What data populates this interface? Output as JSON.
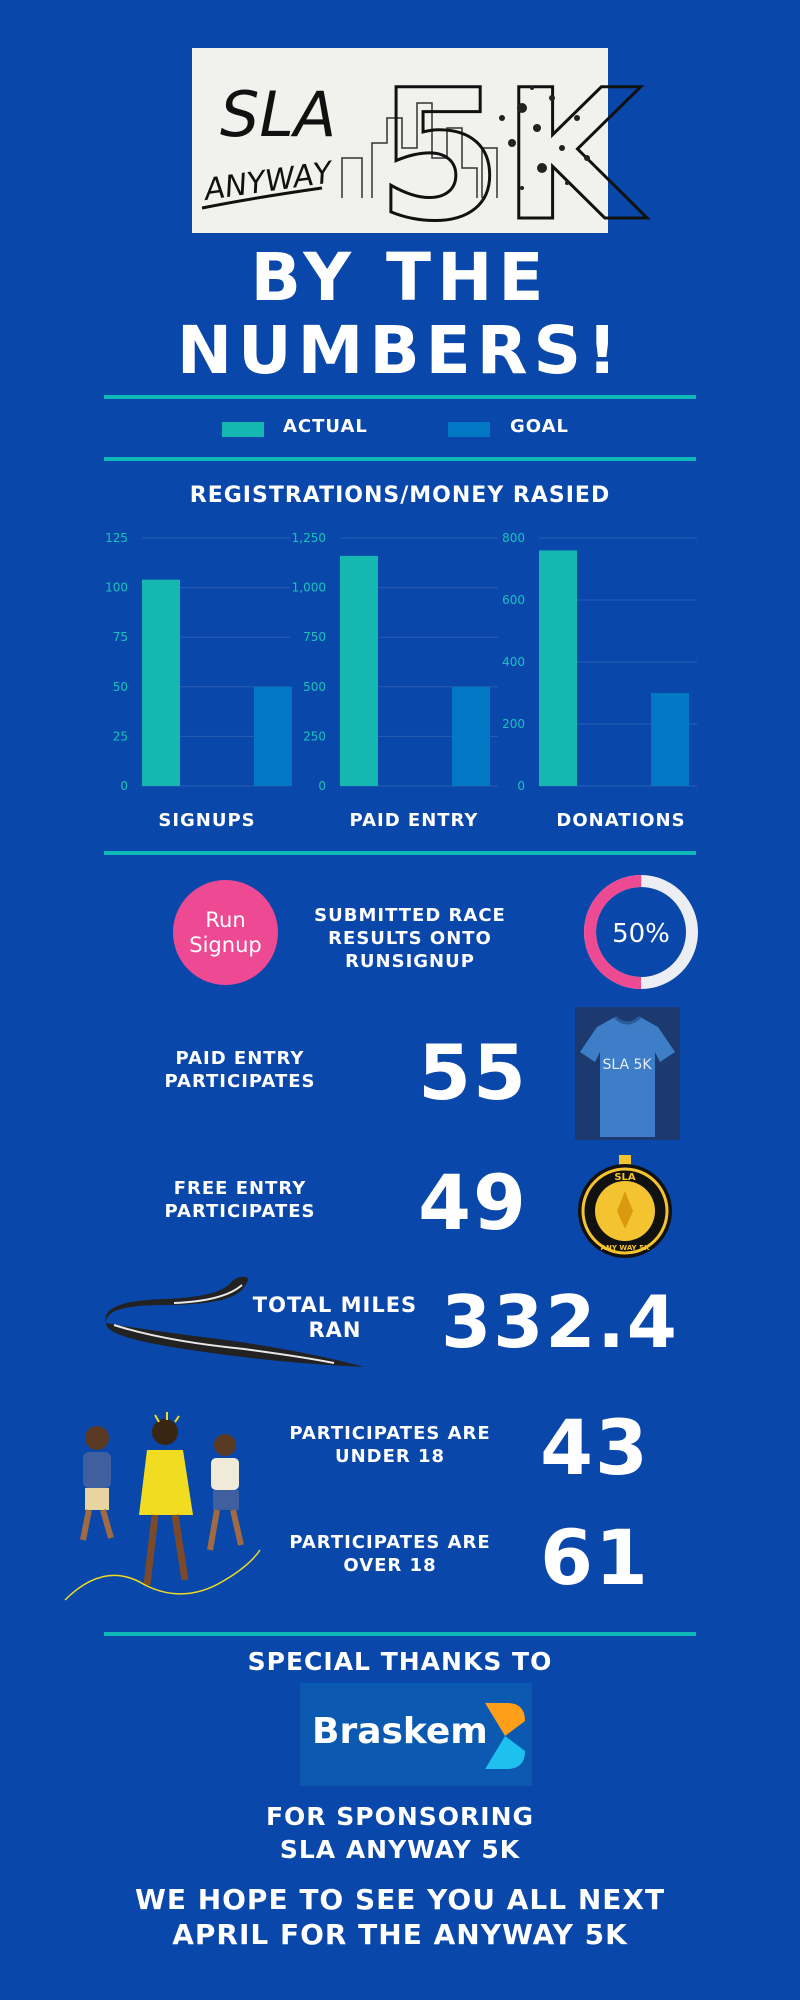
{
  "header": {
    "logo": {
      "line1": "SLA",
      "line2": "ANYWAY",
      "line3": "5K"
    },
    "title_line1": "BY THE",
    "title_line2": "NUMBERS!"
  },
  "legend": {
    "actual": "ACTUAL",
    "goal": "GOAL"
  },
  "colors": {
    "background": "#0a47aa",
    "actual": "#14b8b0",
    "goal": "#0277c4",
    "divider": "#11b8b8",
    "runsignup": "#ee4a94"
  },
  "section_title": "REGISTRATIONS/MONEY RASIED",
  "chart_data": [
    {
      "type": "bar",
      "title": "",
      "xlabel": "SIGNUPS",
      "ylabel": "",
      "categories": [
        "ACTUAL",
        "GOAL"
      ],
      "values": [
        104,
        50
      ],
      "ylim": [
        0,
        125
      ],
      "ticks": [
        "0",
        "25",
        "50",
        "75",
        "100",
        "125"
      ],
      "tick_values": [
        0,
        25,
        50,
        75,
        100,
        125
      ],
      "grid": true
    },
    {
      "type": "bar",
      "title": "",
      "xlabel": "PAID ENTRY",
      "ylabel": "",
      "categories": [
        "ACTUAL",
        "GOAL"
      ],
      "values": [
        1160,
        500
      ],
      "ylim": [
        0,
        1250
      ],
      "ticks": [
        "0",
        "250",
        "500",
        "750",
        "1,000",
        "1,250"
      ],
      "tick_values": [
        0,
        250,
        500,
        750,
        1000,
        1250
      ],
      "grid": true
    },
    {
      "type": "bar",
      "title": "",
      "xlabel": "DONATIONS",
      "ylabel": "",
      "categories": [
        "ACTUAL",
        "GOAL"
      ],
      "values": [
        760,
        300
      ],
      "ylim": [
        0,
        800
      ],
      "ticks": [
        "0",
        "200",
        "400",
        "600",
        "800"
      ],
      "tick_values": [
        0,
        200,
        400,
        600,
        800
      ],
      "grid": true
    }
  ],
  "runsignup": {
    "logo_line1": "Run",
    "logo_line2": "Signup",
    "label_line1": "SUBMITTED RACE",
    "label_line2": "RESULTS ONTO",
    "label_line3": "RUNSIGNUP",
    "percent_text": "50%",
    "percent": 0.5
  },
  "paid_entry": {
    "label_line1": "PAID ENTRY",
    "label_line2": "PARTICIPATES",
    "value": "55",
    "shirt_text": "SLA 5K"
  },
  "free_entry": {
    "label_line1": "FREE ENTRY",
    "label_line2": "PARTICIPATES",
    "value": "49",
    "medal_top": "SLA",
    "medal_bottom": "ANY WAY 5K"
  },
  "miles": {
    "label_line1": "TOTAL MILES",
    "label_line2": "RAN",
    "value": "332.4"
  },
  "under18": {
    "label_line1": "PARTICIPATES ARE",
    "label_line2": "UNDER 18",
    "value": "43"
  },
  "over18": {
    "label_line1": "PARTICIPATES ARE",
    "label_line2": "OVER 18",
    "value": "61"
  },
  "footer": {
    "thanks": "SPECIAL THANKS TO",
    "sponsor": "Braskem",
    "sponsoring_line1": "FOR SPONSORING",
    "sponsoring_line2": "SLA ANYWAY 5K",
    "closing_line1": "WE HOPE TO SEE YOU ALL NEXT",
    "closing_line2": "APRIL FOR THE ANYWAY 5K"
  }
}
